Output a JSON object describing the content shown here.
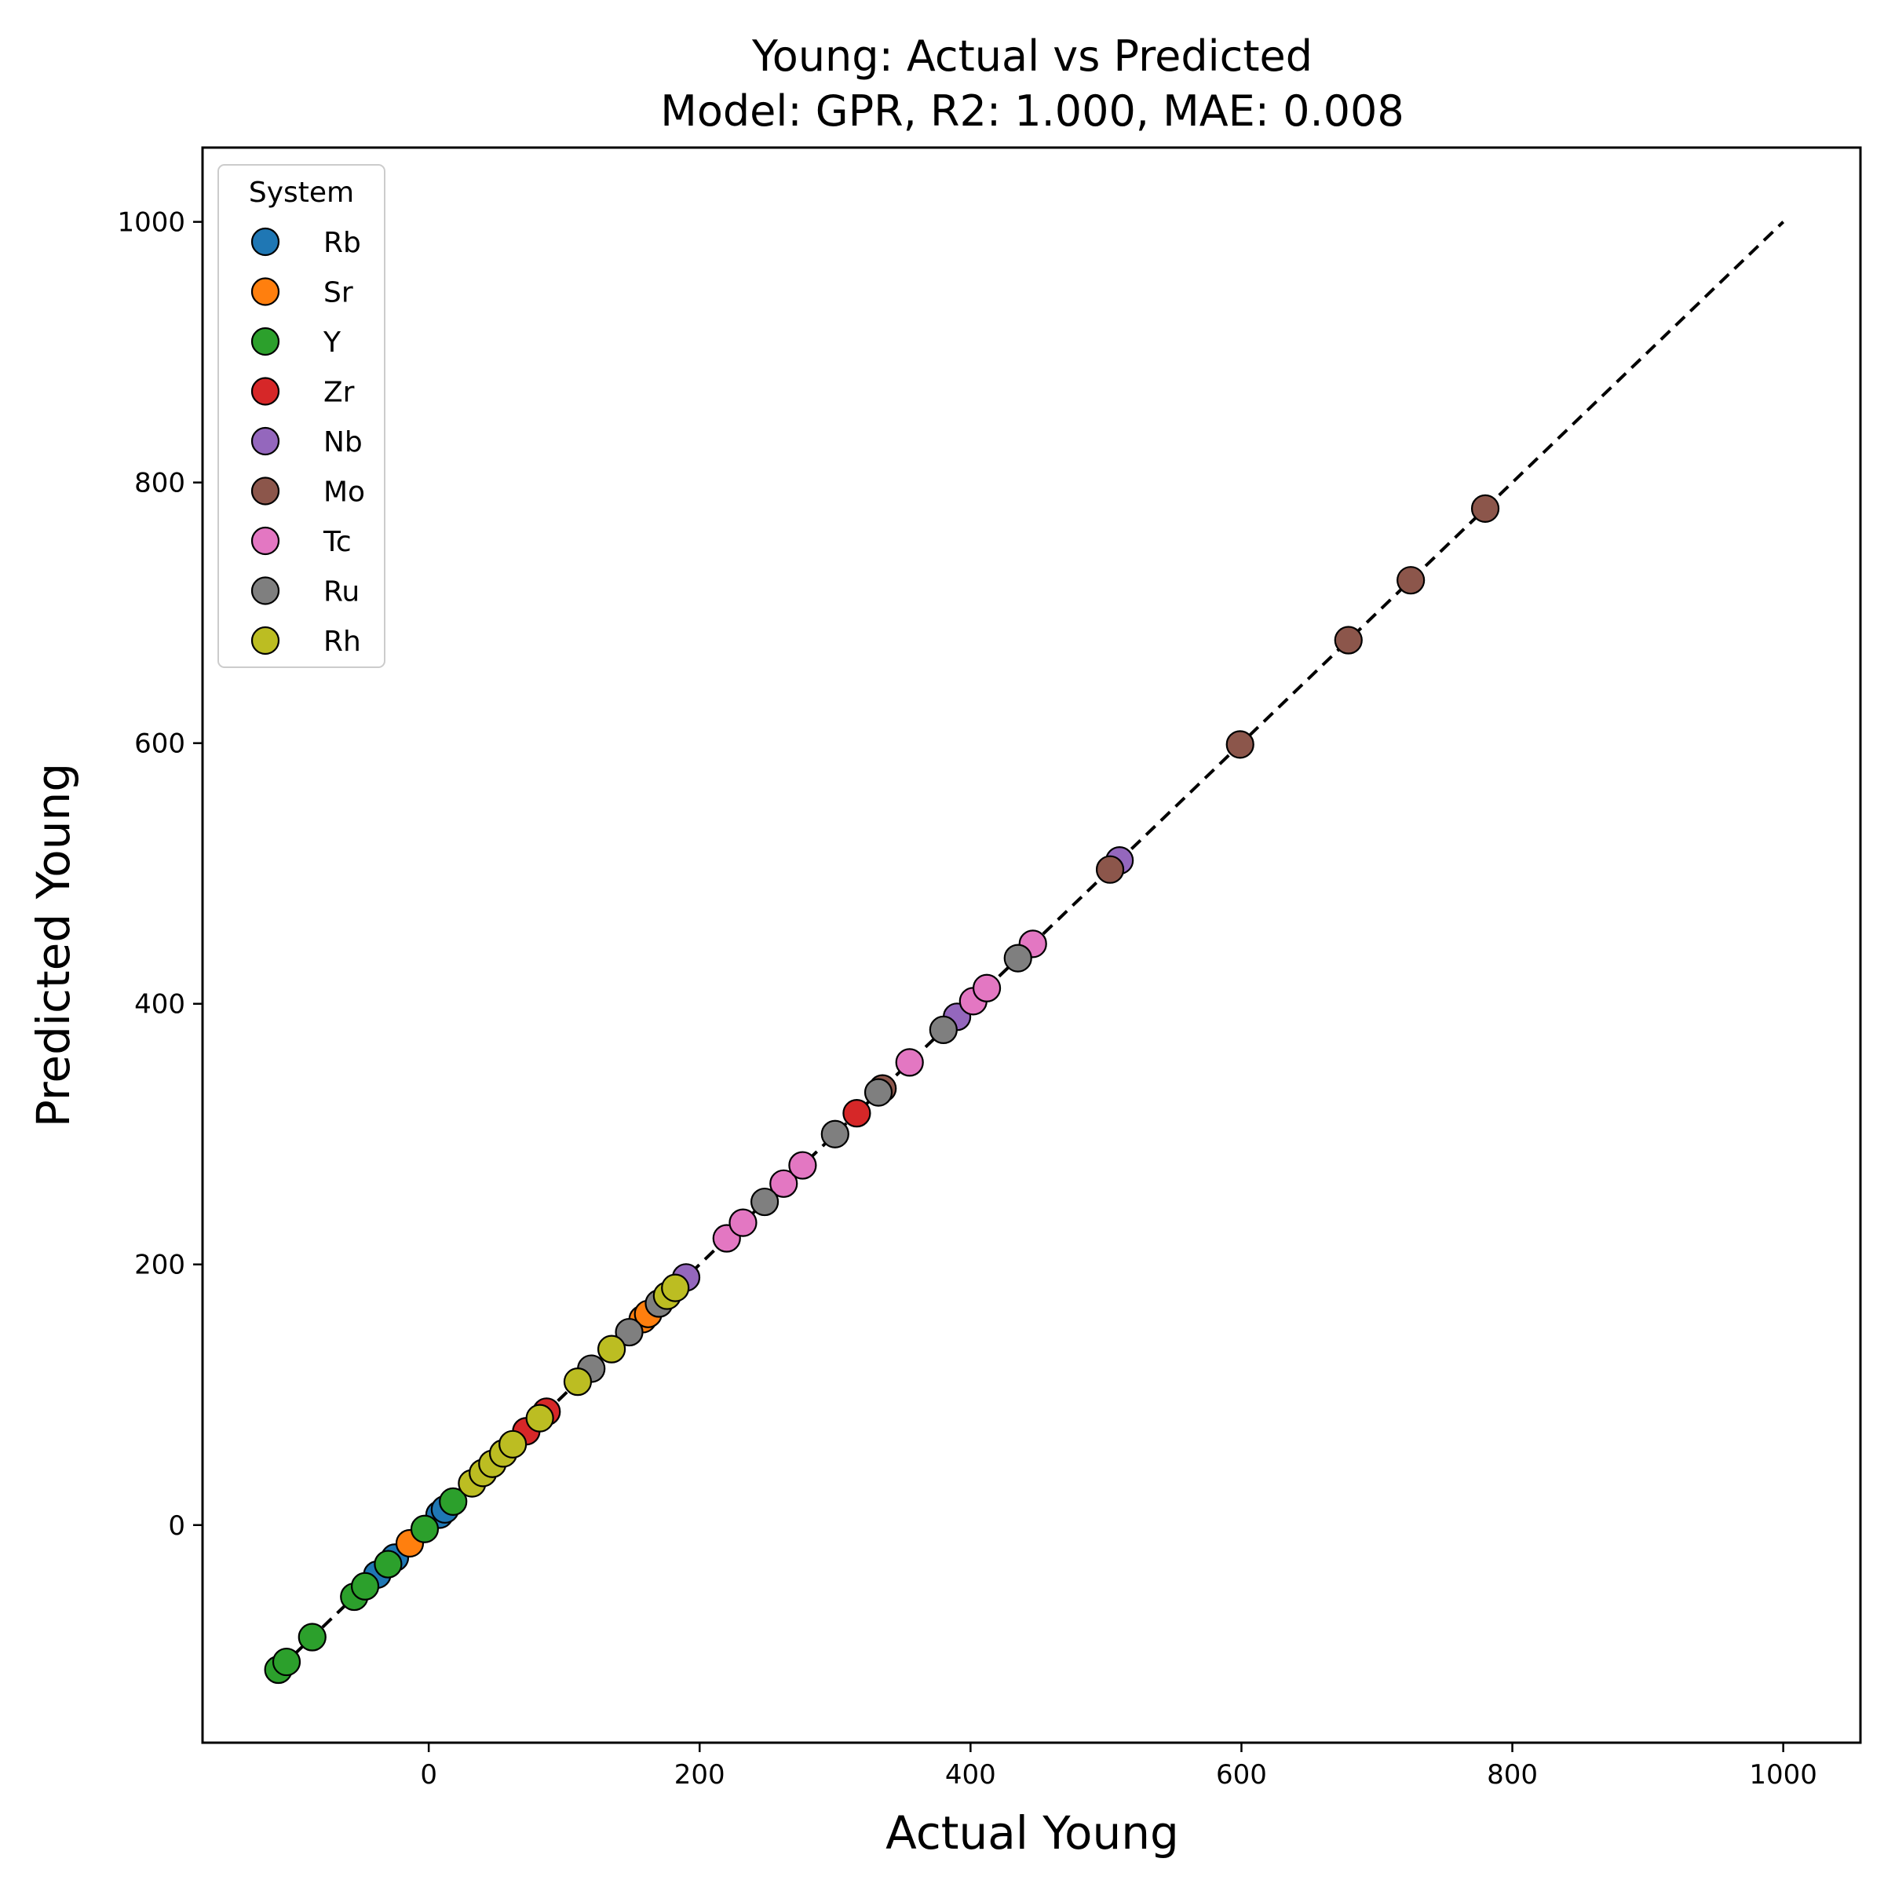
{
  "chart_data": {
    "type": "scatter",
    "title": "Young: Actual vs Predicted",
    "subtitle": "Model: GPR, R2: 1.000, MAE: 0.008",
    "xlabel": "Actual Young",
    "ylabel": "Predicted Young",
    "xlim": [
      -167,
      1057
    ],
    "ylim": [
      -167,
      1057
    ],
    "xticks": [
      0,
      200,
      400,
      600,
      800,
      1000
    ],
    "yticks": [
      0,
      200,
      400,
      600,
      800,
      1000
    ],
    "xtick_labels": [
      "0",
      "200",
      "400",
      "600",
      "800",
      "1000"
    ],
    "ytick_labels": [
      "0",
      "200",
      "400",
      "600",
      "800",
      "1000"
    ],
    "grid": false,
    "reference_line": {
      "style": "dashed",
      "color": "#000000",
      "from": [
        -111,
        -111
      ],
      "to": [
        1000,
        1000
      ]
    },
    "legend": {
      "title": "System",
      "position": "top-left"
    },
    "series": [
      {
        "name": "Rb",
        "color": "#1f77b4",
        "points": [
          [
            -38,
            -38
          ],
          [
            -25,
            -25
          ],
          [
            8,
            8
          ],
          [
            12,
            12
          ]
        ]
      },
      {
        "name": "Sr",
        "color": "#ff7f0e",
        "points": [
          [
            -14,
            -14
          ],
          [
            158,
            158
          ],
          [
            162,
            162
          ]
        ]
      },
      {
        "name": "Y",
        "color": "#2ca02c",
        "points": [
          [
            -111,
            -111
          ],
          [
            -105,
            -105
          ],
          [
            -86,
            -86
          ],
          [
            -55,
            -55
          ],
          [
            -47,
            -47
          ],
          [
            -30,
            -30
          ],
          [
            -3,
            -3
          ],
          [
            18,
            18
          ]
        ]
      },
      {
        "name": "Zr",
        "color": "#d62728",
        "points": [
          [
            72,
            72
          ],
          [
            87,
            87
          ],
          [
            316,
            316
          ]
        ]
      },
      {
        "name": "Nb",
        "color": "#9467bd",
        "points": [
          [
            190,
            190
          ],
          [
            390,
            390
          ],
          [
            510,
            510
          ]
        ]
      },
      {
        "name": "Mo",
        "color": "#8c564b",
        "points": [
          [
            335,
            335
          ],
          [
            503,
            503
          ],
          [
            599,
            599
          ],
          [
            679,
            679
          ],
          [
            725,
            725
          ],
          [
            780,
            780
          ]
        ]
      },
      {
        "name": "Tc",
        "color": "#e377c2",
        "points": [
          [
            220,
            220
          ],
          [
            232,
            232
          ],
          [
            262,
            262
          ],
          [
            276,
            276
          ],
          [
            355,
            355
          ],
          [
            402,
            402
          ],
          [
            412,
            412
          ],
          [
            446,
            446
          ]
        ]
      },
      {
        "name": "Ru",
        "color": "#7f7f7f",
        "points": [
          [
            120,
            120
          ],
          [
            148,
            148
          ],
          [
            170,
            170
          ],
          [
            248,
            248
          ],
          [
            300,
            300
          ],
          [
            332,
            332
          ],
          [
            380,
            380
          ],
          [
            435,
            435
          ]
        ]
      },
      {
        "name": "Rh",
        "color": "#bcbd22",
        "points": [
          [
            32,
            32
          ],
          [
            40,
            40
          ],
          [
            47,
            47
          ],
          [
            55,
            55
          ],
          [
            62,
            62
          ],
          [
            82,
            82
          ],
          [
            110,
            110
          ],
          [
            135,
            135
          ],
          [
            176,
            176
          ],
          [
            182,
            182
          ]
        ]
      }
    ]
  }
}
